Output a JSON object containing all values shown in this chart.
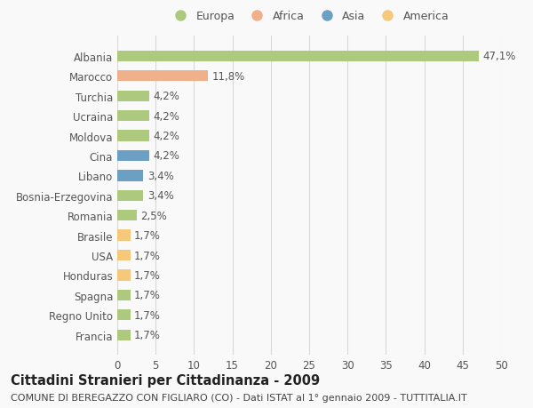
{
  "categories": [
    "Francia",
    "Regno Unito",
    "Spagna",
    "Honduras",
    "USA",
    "Brasile",
    "Romania",
    "Bosnia-Erzegovina",
    "Libano",
    "Cina",
    "Moldova",
    "Ucraina",
    "Turchia",
    "Marocco",
    "Albania"
  ],
  "values": [
    1.7,
    1.7,
    1.7,
    1.7,
    1.7,
    1.7,
    2.5,
    3.4,
    3.4,
    4.2,
    4.2,
    4.2,
    4.2,
    11.8,
    47.1
  ],
  "labels": [
    "1,7%",
    "1,7%",
    "1,7%",
    "1,7%",
    "1,7%",
    "1,7%",
    "2,5%",
    "3,4%",
    "3,4%",
    "4,2%",
    "4,2%",
    "4,2%",
    "4,2%",
    "11,8%",
    "47,1%"
  ],
  "colors": [
    "#adc97e",
    "#adc97e",
    "#adc97e",
    "#f5c87a",
    "#f5c87a",
    "#f5c87a",
    "#adc97e",
    "#adc97e",
    "#6b9fc3",
    "#6b9fc3",
    "#adc97e",
    "#adc97e",
    "#adc97e",
    "#f0b08c",
    "#adc97e"
  ],
  "legend_labels": [
    "Europa",
    "Africa",
    "Asia",
    "America"
  ],
  "legend_colors": [
    "#adc97e",
    "#f0b08c",
    "#6b9fc3",
    "#f5c87a"
  ],
  "title": "Cittadini Stranieri per Cittadinanza - 2009",
  "subtitle": "COMUNE DI BEREGAZZO CON FIGLIARO (CO) - Dati ISTAT al 1° gennaio 2009 - TUTTITALIA.IT",
  "xlim": [
    0,
    50
  ],
  "xticks": [
    0,
    5,
    10,
    15,
    20,
    25,
    30,
    35,
    40,
    45,
    50
  ],
  "background_color": "#f9f9f9",
  "grid_color": "#d8d8d8",
  "title_fontsize": 10.5,
  "subtitle_fontsize": 8,
  "tick_fontsize": 8.5,
  "label_fontsize": 8.5
}
